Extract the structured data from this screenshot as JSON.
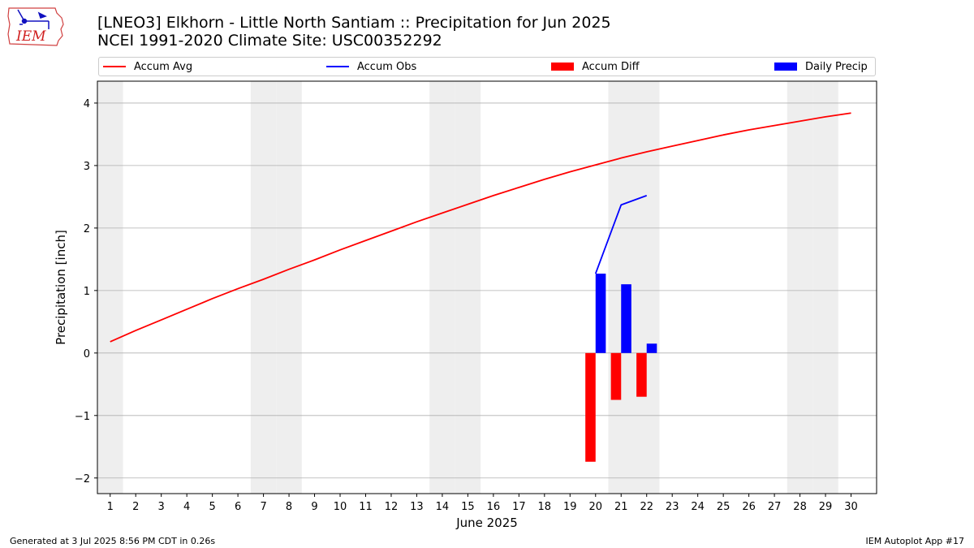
{
  "header": {
    "logo_text": "IEM",
    "title": "[LNEO3] Elkhorn - Little North Santiam :: Precipitation for Jun 2025",
    "subtitle": "NCEI 1991-2020 Climate Site: USC00352292"
  },
  "footer": {
    "generated": "Generated at 3 Jul 2025 8:56 PM CDT in 0.26s",
    "app": "IEM Autoplot App #17"
  },
  "colors": {
    "accum_avg": "#ff0000",
    "accum_obs": "#0000ff",
    "accum_diff": "#ff0000",
    "daily_precip": "#0000ff",
    "weekend_shade": "#eeeeee",
    "grid": "#b0b0b0"
  },
  "chart_data": {
    "type": "bar",
    "xlabel": "June 2025",
    "ylabel": "Precipitation [inch]",
    "ylim": [
      -2.25,
      4.35
    ],
    "yticks": [
      -2,
      -1,
      0,
      1,
      2,
      3,
      4
    ],
    "ytick_labels": [
      "−2",
      "−1",
      "0",
      "1",
      "2",
      "3",
      "4"
    ],
    "xlim": [
      0.5,
      31.0
    ],
    "days": [
      1,
      2,
      3,
      4,
      5,
      6,
      7,
      8,
      9,
      10,
      11,
      12,
      13,
      14,
      15,
      16,
      17,
      18,
      19,
      20,
      21,
      22,
      23,
      24,
      25,
      26,
      27,
      28,
      29,
      30
    ],
    "weekend_days": [
      1,
      7,
      8,
      14,
      15,
      21,
      22,
      28,
      29
    ],
    "grid": "y",
    "legend": {
      "placement": "top",
      "entries": [
        {
          "label": "Accum Avg",
          "kind": "line",
          "color": "#ff0000"
        },
        {
          "label": "Accum Obs",
          "kind": "line",
          "color": "#0000ff"
        },
        {
          "label": "Accum Diff",
          "kind": "bar",
          "color": "#ff0000"
        },
        {
          "label": "Daily Precip",
          "kind": "bar",
          "color": "#0000ff"
        }
      ]
    },
    "series": [
      {
        "name": "Accum Avg",
        "type": "line",
        "x": [
          1,
          2,
          3,
          4,
          5,
          6,
          7,
          8,
          9,
          10,
          11,
          12,
          13,
          14,
          15,
          16,
          17,
          18,
          19,
          20,
          21,
          22,
          23,
          24,
          25,
          26,
          27,
          28,
          29,
          30
        ],
        "values": [
          0.18,
          0.36,
          0.53,
          0.7,
          0.87,
          1.03,
          1.18,
          1.34,
          1.49,
          1.65,
          1.8,
          1.95,
          2.1,
          2.24,
          2.38,
          2.52,
          2.65,
          2.78,
          2.9,
          3.01,
          3.12,
          3.22,
          3.31,
          3.4,
          3.49,
          3.57,
          3.64,
          3.71,
          3.78,
          3.84
        ]
      },
      {
        "name": "Accum Obs",
        "type": "line",
        "x": [
          20,
          21,
          22
        ],
        "values": [
          1.27,
          2.37,
          2.52
        ]
      },
      {
        "name": "Accum Diff",
        "type": "bar",
        "x": [
          20,
          21,
          22
        ],
        "values": [
          -1.74,
          -0.75,
          -0.7
        ]
      },
      {
        "name": "Daily Precip",
        "type": "bar",
        "x": [
          20,
          21,
          22
        ],
        "values": [
          1.27,
          1.1,
          0.15
        ]
      }
    ]
  }
}
